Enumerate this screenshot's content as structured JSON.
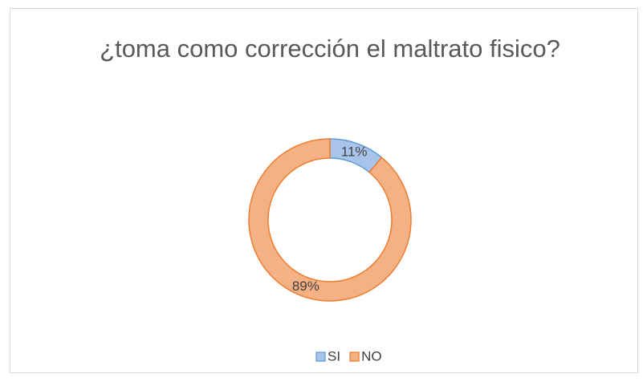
{
  "chart_data": {
    "type": "donut",
    "title": "¿toma como corrección el maltrato fisico?",
    "categories": [
      "SI",
      "NO"
    ],
    "values": [
      11,
      89
    ],
    "value_labels": [
      "11%",
      "89%"
    ],
    "colors": [
      "#a9c4eb",
      "#f4b183"
    ],
    "edge_colors": [
      "#5b9bd5",
      "#ed7d31"
    ],
    "legend": "bottom"
  }
}
